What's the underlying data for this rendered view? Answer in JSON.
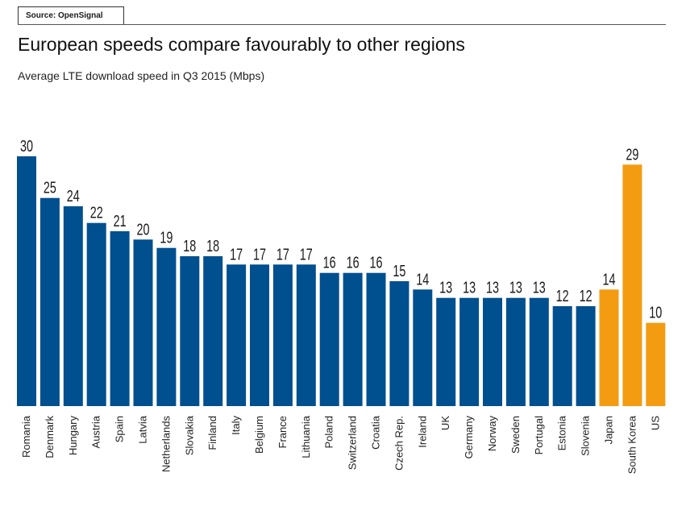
{
  "source": "Source: OpenSignal",
  "title": "European speeds compare favourably to other regions",
  "subtitle": "Average LTE download speed in Q3 2015 (Mbps)",
  "colors": {
    "europe": "#004f8f",
    "other": "#f39c12"
  },
  "chart_data": {
    "type": "bar",
    "title": "European speeds compare favourably to other regions",
    "subtitle": "Average LTE download speed in Q3 2015 (Mbps)",
    "categories": [
      "Romania",
      "Denmark",
      "Hungary",
      "Austria",
      "Spain",
      "Latvia",
      "Netherlands",
      "Slovakia",
      "Finland",
      "Italy",
      "Belgium",
      "France",
      "Lithuania",
      "Poland",
      "Switzerland",
      "Croatia",
      "Czech Rep.",
      "Ireland",
      "UK",
      "Germany",
      "Norway",
      "Sweden",
      "Portugal",
      "Estonia",
      "Slovenia",
      "Japan",
      "South Korea",
      "US"
    ],
    "values": [
      30,
      25,
      24,
      22,
      21,
      20,
      19,
      18,
      18,
      17,
      17,
      17,
      17,
      16,
      16,
      16,
      15,
      14,
      13,
      13,
      13,
      13,
      13,
      12,
      12,
      14,
      29,
      10
    ],
    "groups": [
      "europe",
      "europe",
      "europe",
      "europe",
      "europe",
      "europe",
      "europe",
      "europe",
      "europe",
      "europe",
      "europe",
      "europe",
      "europe",
      "europe",
      "europe",
      "europe",
      "europe",
      "europe",
      "europe",
      "europe",
      "europe",
      "europe",
      "europe",
      "europe",
      "europe",
      "other",
      "other",
      "other"
    ],
    "ylim": [
      0,
      30
    ],
    "grid": false,
    "xlabel": "",
    "ylabel": ""
  }
}
